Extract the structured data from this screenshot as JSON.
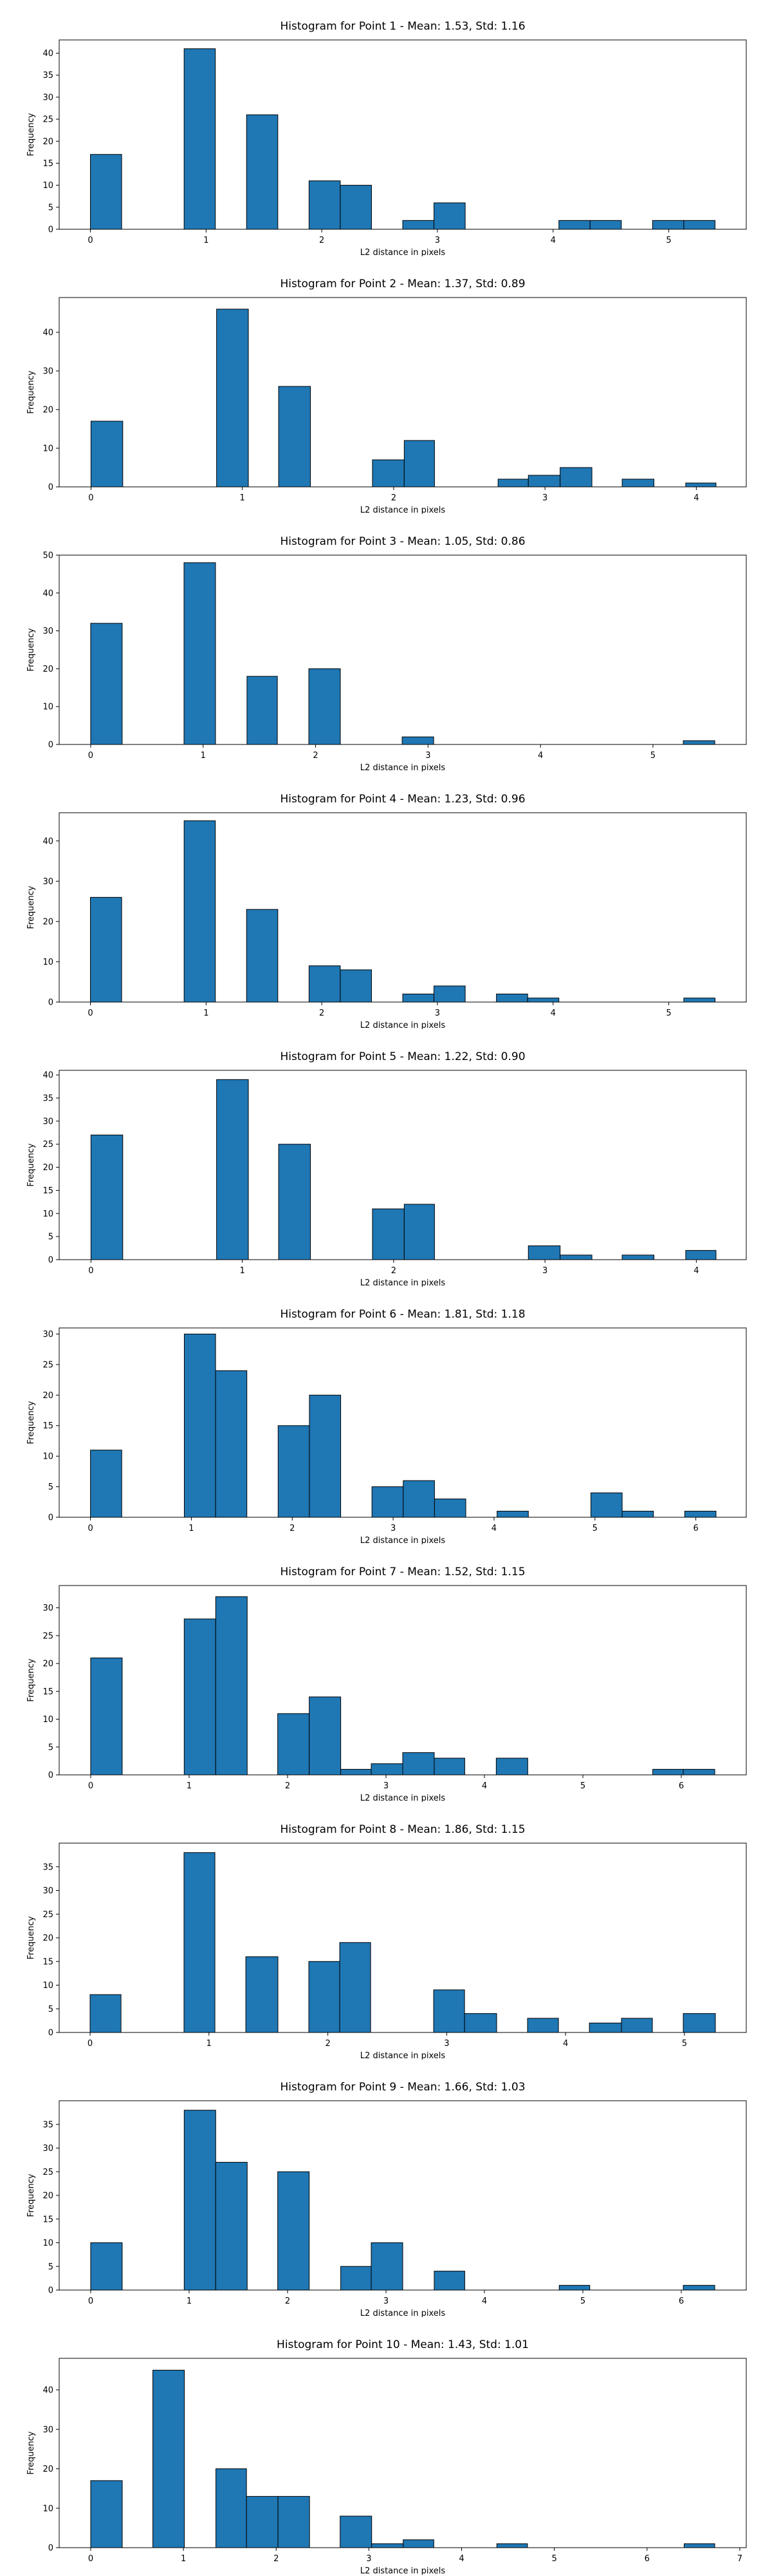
{
  "chart_data": [
    {
      "type": "bar",
      "title": "Histogram for Point 1 - Mean: 1.53, Std: 1.16",
      "xlabel": "L2 distance in pixels",
      "ylabel": "Frequency",
      "xlim": [
        -0.27,
        5.67
      ],
      "ylim": [
        0,
        43
      ],
      "xticks": [
        "0",
        "1",
        "2",
        "3",
        "4",
        "5"
      ],
      "yticks": [
        "0",
        "5",
        "10",
        "15",
        "20",
        "25",
        "30",
        "35",
        "40"
      ],
      "bins": [
        {
          "x0": 0.0,
          "x1": 0.27,
          "value": 17
        },
        {
          "x0": 0.81,
          "x1": 1.08,
          "value": 41
        },
        {
          "x0": 1.35,
          "x1": 1.62,
          "value": 26
        },
        {
          "x0": 1.89,
          "x1": 2.16,
          "value": 11
        },
        {
          "x0": 2.16,
          "x1": 2.43,
          "value": 10
        },
        {
          "x0": 2.7,
          "x1": 2.97,
          "value": 2
        },
        {
          "x0": 2.97,
          "x1": 3.24,
          "value": 6
        },
        {
          "x0": 4.05,
          "x1": 4.32,
          "value": 2
        },
        {
          "x0": 4.32,
          "x1": 4.59,
          "value": 2
        },
        {
          "x0": 4.86,
          "x1": 5.13,
          "value": 2
        },
        {
          "x0": 5.13,
          "x1": 5.4,
          "value": 2
        }
      ]
    },
    {
      "type": "bar",
      "title": "Histogram for Point 2 - Mean: 1.37, Std: 0.89",
      "xlabel": "L2 distance in pixels",
      "ylabel": "Frequency",
      "xlim": [
        -0.21,
        4.33
      ],
      "ylim": [
        0,
        49
      ],
      "xticks": [
        "0",
        "1",
        "2",
        "3",
        "4"
      ],
      "yticks": [
        "0",
        "10",
        "20",
        "30",
        "40"
      ],
      "bins": [
        {
          "x0": 0.0,
          "x1": 0.21,
          "value": 17
        },
        {
          "x0": 0.83,
          "x1": 1.04,
          "value": 46
        },
        {
          "x0": 1.24,
          "x1": 1.45,
          "value": 26
        },
        {
          "x0": 1.86,
          "x1": 2.07,
          "value": 7
        },
        {
          "x0": 2.07,
          "x1": 2.27,
          "value": 12
        },
        {
          "x0": 2.69,
          "x1": 2.89,
          "value": 2
        },
        {
          "x0": 2.89,
          "x1": 3.1,
          "value": 3
        },
        {
          "x0": 3.1,
          "x1": 3.31,
          "value": 5
        },
        {
          "x0": 3.51,
          "x1": 3.72,
          "value": 2
        },
        {
          "x0": 3.93,
          "x1": 4.13,
          "value": 1
        }
      ]
    },
    {
      "type": "bar",
      "title": "Histogram for Point 3 - Mean: 1.05, Std: 0.86",
      "xlabel": "L2 distance in pixels",
      "ylabel": "Frequency",
      "xlim": [
        -0.28,
        5.83
      ],
      "ylim": [
        0,
        50
      ],
      "xticks": [
        "0",
        "1",
        "2",
        "3",
        "4",
        "5"
      ],
      "yticks": [
        "0",
        "10",
        "20",
        "30",
        "40",
        "50"
      ],
      "bins": [
        {
          "x0": 0.0,
          "x1": 0.28,
          "value": 32
        },
        {
          "x0": 0.83,
          "x1": 1.11,
          "value": 48
        },
        {
          "x0": 1.39,
          "x1": 1.66,
          "value": 18
        },
        {
          "x0": 1.94,
          "x1": 2.22,
          "value": 20
        },
        {
          "x0": 2.77,
          "x1": 3.05,
          "value": 2
        },
        {
          "x0": 5.27,
          "x1": 5.55,
          "value": 1
        }
      ]
    },
    {
      "type": "bar",
      "title": "Histogram for Point 4 - Mean: 1.23, Std: 0.96",
      "xlabel": "L2 distance in pixels",
      "ylabel": "Frequency",
      "xlim": [
        -0.27,
        5.67
      ],
      "ylim": [
        0,
        47
      ],
      "xticks": [
        "0",
        "1",
        "2",
        "3",
        "4",
        "5"
      ],
      "yticks": [
        "0",
        "10",
        "20",
        "30",
        "40"
      ],
      "bins": [
        {
          "x0": 0.0,
          "x1": 0.27,
          "value": 26
        },
        {
          "x0": 0.81,
          "x1": 1.08,
          "value": 45
        },
        {
          "x0": 1.35,
          "x1": 1.62,
          "value": 23
        },
        {
          "x0": 1.89,
          "x1": 2.16,
          "value": 9
        },
        {
          "x0": 2.16,
          "x1": 2.43,
          "value": 8
        },
        {
          "x0": 2.7,
          "x1": 2.97,
          "value": 2
        },
        {
          "x0": 2.97,
          "x1": 3.24,
          "value": 4
        },
        {
          "x0": 3.51,
          "x1": 3.78,
          "value": 2
        },
        {
          "x0": 3.78,
          "x1": 4.05,
          "value": 1
        },
        {
          "x0": 5.13,
          "x1": 5.4,
          "value": 1
        }
      ]
    },
    {
      "type": "bar",
      "title": "Histogram for Point 5 - Mean: 1.22, Std: 0.90",
      "xlabel": "L2 distance in pixels",
      "ylabel": "Frequency",
      "xlim": [
        -0.21,
        4.33
      ],
      "ylim": [
        0,
        41
      ],
      "xticks": [
        "0",
        "1",
        "2",
        "3",
        "4"
      ],
      "yticks": [
        "0",
        "5",
        "10",
        "15",
        "20",
        "25",
        "30",
        "35",
        "40"
      ],
      "bins": [
        {
          "x0": 0.0,
          "x1": 0.21,
          "value": 27
        },
        {
          "x0": 0.83,
          "x1": 1.04,
          "value": 39
        },
        {
          "x0": 1.24,
          "x1": 1.45,
          "value": 25
        },
        {
          "x0": 1.86,
          "x1": 2.07,
          "value": 11
        },
        {
          "x0": 2.07,
          "x1": 2.27,
          "value": 12
        },
        {
          "x0": 2.89,
          "x1": 3.1,
          "value": 3
        },
        {
          "x0": 3.1,
          "x1": 3.31,
          "value": 1
        },
        {
          "x0": 3.51,
          "x1": 3.72,
          "value": 1
        },
        {
          "x0": 3.93,
          "x1": 4.13,
          "value": 2
        }
      ]
    },
    {
      "type": "bar",
      "title": "Histogram for Point 6 - Mean: 1.81, Std: 1.18",
      "xlabel": "L2 distance in pixels",
      "ylabel": "Frequency",
      "xlim": [
        -0.31,
        6.5
      ],
      "ylim": [
        0,
        31
      ],
      "xticks": [
        "0",
        "1",
        "2",
        "3",
        "4",
        "5",
        "6"
      ],
      "yticks": [
        "0",
        "5",
        "10",
        "15",
        "20",
        "25",
        "30"
      ],
      "bins": [
        {
          "x0": 0.0,
          "x1": 0.31,
          "value": 11
        },
        {
          "x0": 0.93,
          "x1": 1.24,
          "value": 30
        },
        {
          "x0": 1.24,
          "x1": 1.55,
          "value": 24
        },
        {
          "x0": 1.86,
          "x1": 2.17,
          "value": 15
        },
        {
          "x0": 2.17,
          "x1": 2.48,
          "value": 20
        },
        {
          "x0": 2.79,
          "x1": 3.1,
          "value": 5
        },
        {
          "x0": 3.1,
          "x1": 3.41,
          "value": 6
        },
        {
          "x0": 3.41,
          "x1": 3.72,
          "value": 3
        },
        {
          "x0": 4.03,
          "x1": 4.34,
          "value": 1
        },
        {
          "x0": 4.96,
          "x1": 5.27,
          "value": 4
        },
        {
          "x0": 5.27,
          "x1": 5.58,
          "value": 1
        },
        {
          "x0": 5.89,
          "x1": 6.2,
          "value": 1
        }
      ]
    },
    {
      "type": "bar",
      "title": "Histogram for Point 7 - Mean: 1.52, Std: 1.15",
      "xlabel": "L2 distance in pixels",
      "ylabel": "Frequency",
      "xlim": [
        -0.32,
        6.66
      ],
      "ylim": [
        0,
        34
      ],
      "xticks": [
        "0",
        "1",
        "2",
        "3",
        "4",
        "5",
        "6"
      ],
      "yticks": [
        "0",
        "5",
        "10",
        "15",
        "20",
        "25",
        "30"
      ],
      "bins": [
        {
          "x0": 0.0,
          "x1": 0.32,
          "value": 21
        },
        {
          "x0": 0.95,
          "x1": 1.27,
          "value": 28
        },
        {
          "x0": 1.27,
          "x1": 1.59,
          "value": 32
        },
        {
          "x0": 1.9,
          "x1": 2.22,
          "value": 11
        },
        {
          "x0": 2.22,
          "x1": 2.54,
          "value": 14
        },
        {
          "x0": 2.54,
          "x1": 2.85,
          "value": 1
        },
        {
          "x0": 2.85,
          "x1": 3.17,
          "value": 2
        },
        {
          "x0": 3.17,
          "x1": 3.49,
          "value": 4
        },
        {
          "x0": 3.49,
          "x1": 3.8,
          "value": 3
        },
        {
          "x0": 4.12,
          "x1": 4.44,
          "value": 3
        },
        {
          "x0": 5.71,
          "x1": 6.02,
          "value": 1
        },
        {
          "x0": 6.02,
          "x1": 6.34,
          "value": 1
        }
      ]
    },
    {
      "type": "bar",
      "title": "Histogram for Point 8 - Mean: 1.86, Std: 1.15",
      "xlabel": "L2 distance in pixels",
      "ylabel": "Frequency",
      "xlim": [
        -0.26,
        5.52
      ],
      "ylim": [
        0,
        40
      ],
      "xticks": [
        "0",
        "1",
        "2",
        "3",
        "4",
        "5"
      ],
      "yticks": [
        "0",
        "5",
        "10",
        "15",
        "20",
        "25",
        "30",
        "35"
      ],
      "bins": [
        {
          "x0": 0.0,
          "x1": 0.26,
          "value": 8
        },
        {
          "x0": 0.79,
          "x1": 1.05,
          "value": 38
        },
        {
          "x0": 1.31,
          "x1": 1.58,
          "value": 16
        },
        {
          "x0": 1.84,
          "x1": 2.1,
          "value": 15
        },
        {
          "x0": 2.1,
          "x1": 2.36,
          "value": 19
        },
        {
          "x0": 2.89,
          "x1": 3.15,
          "value": 9
        },
        {
          "x0": 3.15,
          "x1": 3.42,
          "value": 4
        },
        {
          "x0": 3.68,
          "x1": 3.94,
          "value": 3
        },
        {
          "x0": 4.2,
          "x1": 4.47,
          "value": 2
        },
        {
          "x0": 4.47,
          "x1": 4.73,
          "value": 3
        },
        {
          "x0": 4.99,
          "x1": 5.26,
          "value": 4
        }
      ]
    },
    {
      "type": "bar",
      "title": "Histogram for Point 9 - Mean: 1.66, Std: 1.03",
      "xlabel": "L2 distance in pixels",
      "ylabel": "Frequency",
      "xlim": [
        -0.32,
        6.66
      ],
      "ylim": [
        0,
        40
      ],
      "xticks": [
        "0",
        "1",
        "2",
        "3",
        "4",
        "5",
        "6"
      ],
      "yticks": [
        "0",
        "5",
        "10",
        "15",
        "20",
        "25",
        "30",
        "35"
      ],
      "bins": [
        {
          "x0": 0.0,
          "x1": 0.32,
          "value": 10
        },
        {
          "x0": 0.95,
          "x1": 1.27,
          "value": 38
        },
        {
          "x0": 1.27,
          "x1": 1.59,
          "value": 27
        },
        {
          "x0": 1.9,
          "x1": 2.22,
          "value": 25
        },
        {
          "x0": 2.54,
          "x1": 2.85,
          "value": 5
        },
        {
          "x0": 2.85,
          "x1": 3.17,
          "value": 10
        },
        {
          "x0": 3.49,
          "x1": 3.8,
          "value": 4
        },
        {
          "x0": 4.76,
          "x1": 5.07,
          "value": 1
        },
        {
          "x0": 6.02,
          "x1": 6.34,
          "value": 1
        }
      ]
    },
    {
      "type": "bar",
      "title": "Histogram for Point 10 - Mean: 1.43, Std: 1.01",
      "xlabel": "L2 distance in pixels",
      "ylabel": "Frequency",
      "xlim": [
        -0.34,
        7.07
      ],
      "ylim": [
        0,
        48
      ],
      "xticks": [
        "0",
        "1",
        "2",
        "3",
        "4",
        "5",
        "6",
        "7"
      ],
      "yticks": [
        "0",
        "10",
        "20",
        "30",
        "40"
      ],
      "bins": [
        {
          "x0": 0.0,
          "x1": 0.34,
          "value": 17
        },
        {
          "x0": 0.67,
          "x1": 1.01,
          "value": 45
        },
        {
          "x0": 1.35,
          "x1": 1.68,
          "value": 20
        },
        {
          "x0": 1.68,
          "x1": 2.02,
          "value": 13
        },
        {
          "x0": 2.02,
          "x1": 2.36,
          "value": 13
        },
        {
          "x0": 2.69,
          "x1": 3.03,
          "value": 8
        },
        {
          "x0": 3.03,
          "x1": 3.37,
          "value": 1
        },
        {
          "x0": 3.37,
          "x1": 3.7,
          "value": 2
        },
        {
          "x0": 4.38,
          "x1": 4.71,
          "value": 1
        },
        {
          "x0": 6.4,
          "x1": 6.73,
          "value": 1
        }
      ]
    }
  ]
}
